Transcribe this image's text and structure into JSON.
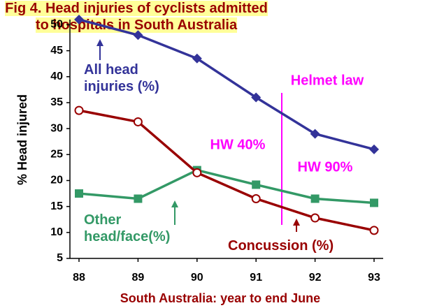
{
  "chart_data": {
    "type": "line",
    "title": "Fig 4. Head injuries of cyclists admitted to hospitals in South Australia",
    "x_label": "South Australia: year to end June",
    "y_label": "% Head injured",
    "categories": [
      "88",
      "89",
      "90",
      "91",
      "92",
      "93"
    ],
    "ylim": [
      5,
      51
    ],
    "yticks": [
      5,
      10,
      15,
      20,
      25,
      30,
      35,
      40,
      45,
      50
    ],
    "series": [
      {
        "name": "All head injuries (%)",
        "color": "#333399",
        "marker": "diamond",
        "values": [
          51,
          48,
          43.5,
          36,
          29,
          26
        ]
      },
      {
        "name": "Other head/face(%)",
        "color": "#339966",
        "marker": "square",
        "values": [
          17.5,
          16.5,
          22,
          19.2,
          16.5,
          15.7
        ]
      },
      {
        "name": "Concussion (%)",
        "color": "#990000",
        "marker": "circle",
        "values": [
          33.5,
          31.3,
          21.5,
          16.5,
          12.8,
          10.4
        ]
      }
    ],
    "annotations": [
      "Helmet law",
      "HW 40%",
      "HW 90%"
    ]
  }
}
